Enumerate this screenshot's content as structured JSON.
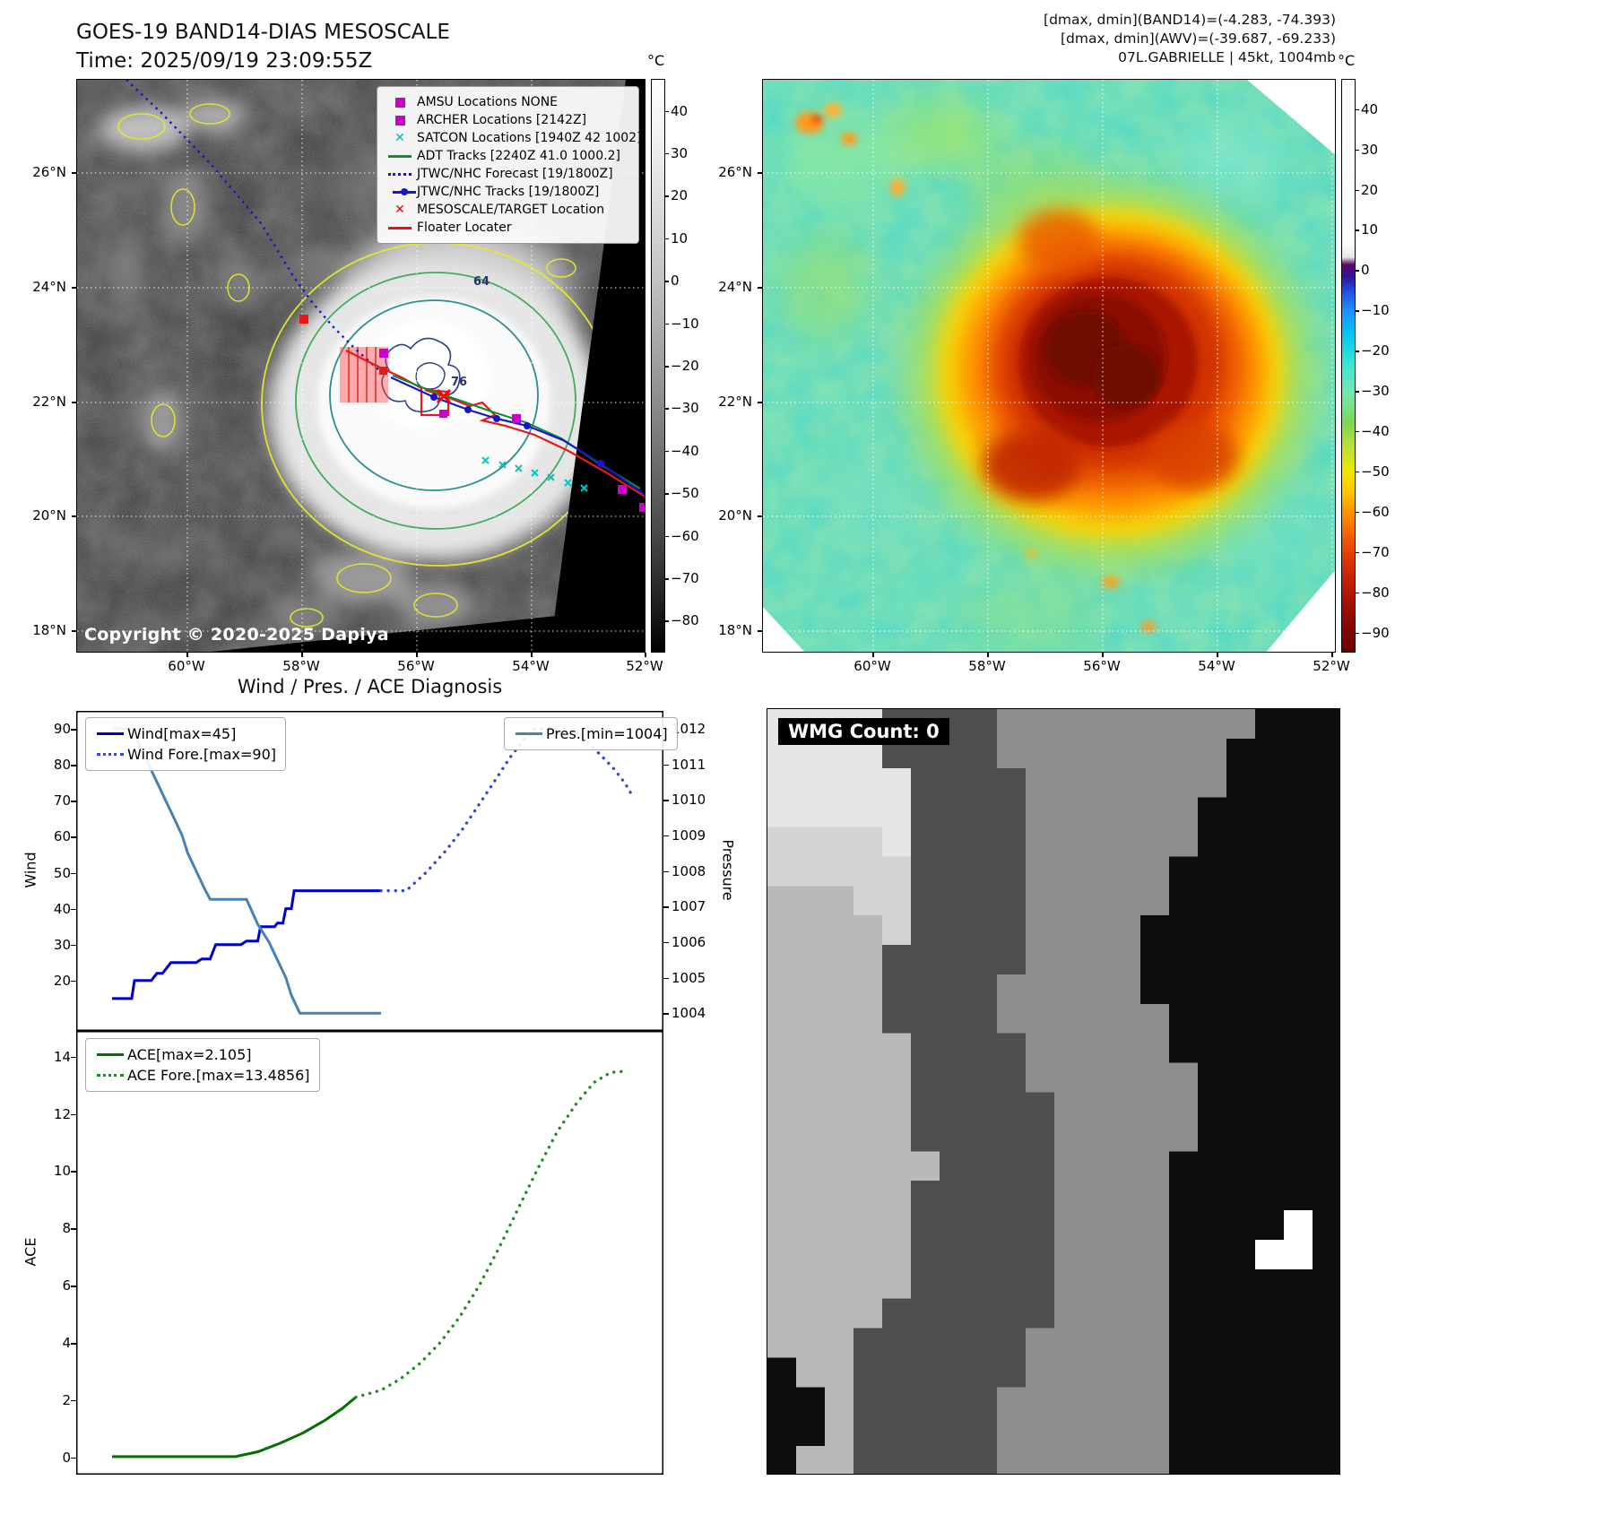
{
  "panelA": {
    "title_line1": "GOES-19 BAND14-DIAS MESOSCALE",
    "title_line2": "Time: 2025/09/19 23:09:55Z",
    "copyright": "Copyright © 2020-2025 Dapiya",
    "lat_ticks": [
      "26°N",
      "24°N",
      "22°N",
      "20°N",
      "18°N"
    ],
    "lon_ticks": [
      "60°W",
      "58°W",
      "56°W",
      "54°W",
      "52°W"
    ],
    "colorbar": {
      "unit": "°C",
      "ticks": [
        "40",
        "30",
        "20",
        "10",
        "0",
        "−10",
        "−20",
        "−30",
        "−40",
        "−50",
        "−60",
        "−70",
        "−80"
      ]
    },
    "contour_labels": [
      "64",
      "76"
    ],
    "legend": [
      {
        "label": "AMSU Locations NONE",
        "marker": "square",
        "color": "#cc00cc",
        "icon": "amsu-square-icon"
      },
      {
        "label": "ARCHER Locations [2142Z]",
        "marker": "square",
        "color": "#cc00cc",
        "icon": "archer-square-icon"
      },
      {
        "label": "SATCON Locations [1940Z 42 1002]",
        "marker": "x",
        "color": "#00b8b8",
        "icon": "satcon-x-icon"
      },
      {
        "label": "ADT Tracks [2240Z 41.0 1000.2]",
        "marker": "line",
        "color": "#0f8f2f",
        "icon": "adt-line-icon"
      },
      {
        "label": "JTWC/NHC Forecast [19/1800Z]",
        "marker": "dotted",
        "color": "#1616c8",
        "icon": "forecast-dotted-icon"
      },
      {
        "label": "JTWC/NHC Tracks [19/1800Z]",
        "marker": "line-dot",
        "color": "#1616c8",
        "icon": "track-line-dot-icon"
      },
      {
        "label": "MESOSCALE/TARGET Location",
        "marker": "x",
        "color": "#ee0000",
        "icon": "target-x-icon"
      },
      {
        "label": "Floater Locater",
        "marker": "line",
        "color": "#ee1111",
        "icon": "floater-line-icon"
      }
    ]
  },
  "panelB": {
    "header_line1": "[dmax, dmin](BAND14)=(-4.283, -74.393)",
    "header_line2": "[dmax, dmin](AWV)=(-39.687, -69.233)",
    "header_line3": "07L.GABRIELLE | 45kt, 1004mb",
    "lat_ticks": [
      "26°N",
      "24°N",
      "22°N",
      "20°N",
      "18°N"
    ],
    "lon_ticks": [
      "60°W",
      "58°W",
      "56°W",
      "54°W",
      "52°W"
    ],
    "colorbar": {
      "unit": "°C",
      "ticks": [
        "40",
        "30",
        "20",
        "10",
        "0",
        "−10",
        "−20",
        "−30",
        "−40",
        "−50",
        "−60",
        "−70",
        "−80",
        "−90"
      ]
    }
  },
  "chart_data": [
    {
      "type": "line",
      "title": "Wind / Pres. / ACE Diagnosis",
      "ylabel": "Wind",
      "ylabel_right": "Pressure",
      "y_ticks": [
        90,
        80,
        70,
        60,
        50,
        40,
        30,
        20
      ],
      "y_range": [
        6,
        95
      ],
      "y2_ticks": [
        1012,
        1011,
        1010,
        1009,
        1008,
        1007,
        1006,
        1005,
        1004
      ],
      "y2_range": [
        1003.5,
        1012.5
      ],
      "x_range": [
        0,
        1
      ],
      "grid": false,
      "legend_position": [
        "upper left",
        "upper right"
      ],
      "series": [
        {
          "name": "Wind[max=45]",
          "axis": "y",
          "style": "solid",
          "color": "#0000cd",
          "points": [
            [
              0.04,
              15
            ],
            [
              0.075,
              15
            ],
            [
              0.08,
              20
            ],
            [
              0.11,
              20
            ],
            [
              0.12,
              22
            ],
            [
              0.13,
              22
            ],
            [
              0.145,
              25
            ],
            [
              0.19,
              25
            ],
            [
              0.2,
              26
            ],
            [
              0.215,
              26
            ],
            [
              0.225,
              30
            ],
            [
              0.27,
              30
            ],
            [
              0.28,
              31
            ],
            [
              0.3,
              31
            ],
            [
              0.305,
              35
            ],
            [
              0.33,
              35
            ],
            [
              0.335,
              36
            ],
            [
              0.345,
              36
            ],
            [
              0.35,
              40
            ],
            [
              0.36,
              40
            ],
            [
              0.365,
              45
            ],
            [
              0.52,
              45
            ]
          ]
        },
        {
          "name": "Wind Fore.[max=90]",
          "axis": "y",
          "style": "dotted",
          "color": "#3348d6",
          "points": [
            [
              0.52,
              45
            ],
            [
              0.565,
              45
            ],
            [
              0.6,
              50
            ],
            [
              0.635,
              56
            ],
            [
              0.665,
              62
            ],
            [
              0.695,
              69
            ],
            [
              0.725,
              76
            ],
            [
              0.75,
              82
            ],
            [
              0.775,
              87
            ],
            [
              0.795,
              90
            ],
            [
              0.85,
              90
            ],
            [
              0.87,
              89
            ],
            [
              0.89,
              86
            ],
            [
              0.91,
              83
            ],
            [
              0.935,
              79
            ],
            [
              0.955,
              75
            ],
            [
              0.97,
              71
            ]
          ]
        },
        {
          "name": "Pres.[min=1004]",
          "axis": "y2",
          "style": "solid",
          "color": "#4682b4",
          "points": [
            [
              0.04,
              1012
            ],
            [
              0.075,
              1012
            ],
            [
              0.09,
              1011.5
            ],
            [
              0.105,
              1011
            ],
            [
              0.12,
              1010.5
            ],
            [
              0.135,
              1010
            ],
            [
              0.15,
              1009.5
            ],
            [
              0.165,
              1009
            ],
            [
              0.175,
              1008.5
            ],
            [
              0.19,
              1008
            ],
            [
              0.205,
              1007.5
            ],
            [
              0.215,
              1007.2
            ],
            [
              0.28,
              1007.2
            ],
            [
              0.3,
              1006.5
            ],
            [
              0.32,
              1006
            ],
            [
              0.335,
              1005.5
            ],
            [
              0.35,
              1005
            ],
            [
              0.36,
              1004.5
            ],
            [
              0.375,
              1004
            ],
            [
              0.52,
              1004
            ]
          ]
        }
      ]
    },
    {
      "type": "line",
      "ylabel": "ACE",
      "y_ticks": [
        14,
        12,
        10,
        8,
        6,
        4,
        2,
        0
      ],
      "y_range": [
        -0.6,
        14.9
      ],
      "x_range": [
        0,
        1
      ],
      "grid": false,
      "legend_position": [
        "upper left"
      ],
      "series": [
        {
          "name": "ACE[max=2.105]",
          "axis": "y",
          "style": "solid",
          "color": "#007000",
          "points": [
            [
              0.04,
              0.03
            ],
            [
              0.26,
              0.03
            ],
            [
              0.3,
              0.2
            ],
            [
              0.34,
              0.5
            ],
            [
              0.38,
              0.85
            ],
            [
              0.42,
              1.3
            ],
            [
              0.45,
              1.7
            ],
            [
              0.475,
              2.105
            ]
          ]
        },
        {
          "name": "ACE Fore.[max=13.4856]",
          "axis": "y",
          "style": "dotted",
          "color": "#1e8c1e",
          "points": [
            [
              0.475,
              2.105
            ],
            [
              0.52,
              2.35
            ],
            [
              0.555,
              2.75
            ],
            [
              0.59,
              3.3
            ],
            [
              0.625,
              4.0
            ],
            [
              0.66,
              4.9
            ],
            [
              0.695,
              6.0
            ],
            [
              0.73,
              7.3
            ],
            [
              0.765,
              8.7
            ],
            [
              0.8,
              10.1
            ],
            [
              0.835,
              11.4
            ],
            [
              0.87,
              12.4
            ],
            [
              0.9,
              13.1
            ],
            [
              0.93,
              13.45
            ],
            [
              0.95,
              13.4856
            ]
          ]
        }
      ]
    }
  ],
  "panelD": {
    "badge": "WMG Count: 0",
    "palette": {
      "W": "#e6e6e6",
      "P": "#d4d4d4",
      "L": "#b9b9b9",
      "M": "#8d8d8d",
      "D": "#4e4e4e",
      "B": "#0d0d0d",
      "w": "#ffffff"
    },
    "grid": [
      "WWWWDDDDMMMMMMMMMBBB",
      "WWWWDDDDMMMMMMMMBBBB",
      "WWWWWDDDDMMMMMMMBBBB",
      "WWWWWDDDDMMMMMMBBBBB",
      "PPPPWDDDDMMMMMMBBBBB",
      "PPPPPDDDDMMMMMBBBBBB",
      "LLLPPDDDDMMMMMBBBBBB",
      "LLLLPDDDDMMMMBBBBBBB",
      "LLLLDDDDDMMMMBBBBBBB",
      "LLLLDDDDMMMMMBBBBBBB",
      "LLLLDDDDMMMMMMBBBBBB",
      "LLLLLDDDDMMMMMBBBBBB",
      "LLLLLDDDDMMMMMMBBBBB",
      "LLLLLDDDDDMMMMMBBBBB",
      "LLLLLDDDDDMMMMMBBBBB",
      "LLLLLLDDDDMMMMBBBBBB",
      "LLLLLDDDDDMMMMBBBBBB",
      "LLLLLDDDDDMMMMBBBBwB",
      "LLLLLDDDDDMMMMBBBwwB",
      "LLLLLDDDDDMMMMBBBBBB",
      "LLLLDDDDDDMMMMBBBBBB",
      "LLLDDDDDDMMMMMBBBBBB",
      "BLLDDDDDDMMMMMBBBBBB",
      "BBLDDDDDMMMMMMBBBBBB",
      "BBLDDDDDMMMMMMBBBBBB",
      "BLLDDDDDMMMMMMBBBBBB"
    ]
  }
}
